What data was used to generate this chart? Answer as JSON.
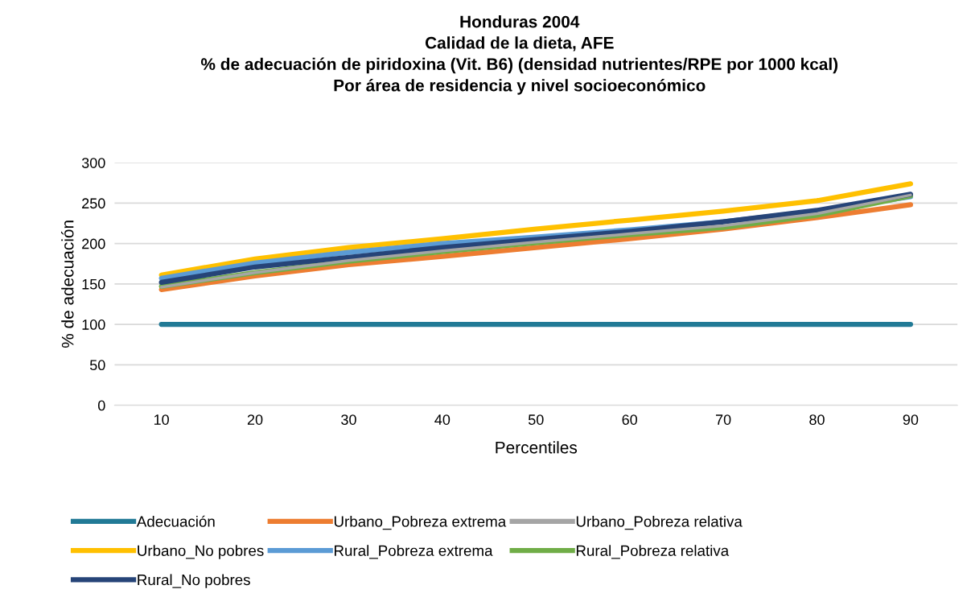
{
  "chart_data": {
    "type": "line",
    "title": "Honduras 2004\nCalidad de la dieta, AFE\n% de adecuación de piridoxina (Vit. B6) (densidad nutrientes/RPE por 1000 kcal)\nPor área de residencia y nivel socioeconómico",
    "xlabel": "Percentiles",
    "ylabel": "% de adecuación",
    "categories": [
      "10",
      "20",
      "30",
      "40",
      "50",
      "60",
      "70",
      "80",
      "90"
    ],
    "ylim": [
      0,
      300
    ],
    "yticks": [
      0,
      50,
      100,
      150,
      200,
      250,
      300
    ],
    "grid": "y",
    "legend": "bottom",
    "marker": "none",
    "line_style": "solid",
    "series": [
      {
        "name": "Adecuación",
        "color": "#217a96",
        "values": [
          100,
          100,
          100,
          100,
          100,
          100,
          100,
          100,
          100
        ]
      },
      {
        "name": "Urbano_Pobreza extrema",
        "color": "#ed7d31",
        "values": [
          143,
          160,
          174,
          184,
          195,
          206,
          218,
          232,
          248
        ]
      },
      {
        "name": "Urbano_Pobreza relativa",
        "color": "#a5a5a5",
        "values": [
          146,
          164,
          179,
          191,
          202,
          212,
          222,
          237,
          260
        ]
      },
      {
        "name": "Urbano_No pobres",
        "color": "#ffc000",
        "values": [
          161,
          181,
          195,
          206,
          218,
          229,
          240,
          253,
          274
        ]
      },
      {
        "name": "Rural_Pobreza extrema",
        "color": "#5b9bd5",
        "values": [
          157,
          176,
          189,
          200,
          208,
          217,
          227,
          240,
          258
        ]
      },
      {
        "name": "Rural_Pobreza relativa",
        "color": "#70ad47",
        "values": [
          147,
          164,
          178,
          190,
          201,
          211,
          220,
          235,
          259
        ]
      },
      {
        "name": "Rural_No pobres",
        "color": "#264478",
        "values": [
          152,
          171,
          183,
          195,
          205,
          215,
          227,
          241,
          261
        ]
      }
    ]
  }
}
